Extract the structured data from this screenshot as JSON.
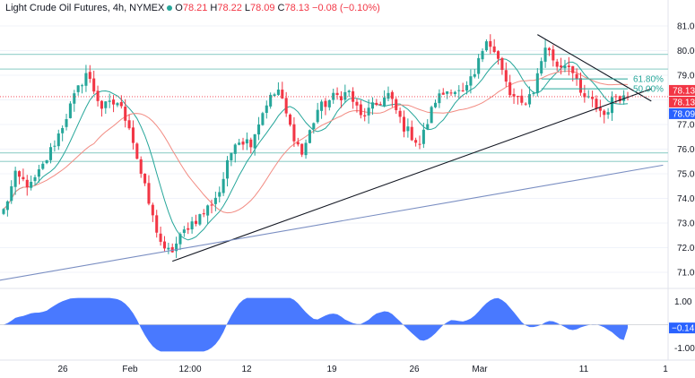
{
  "header": {
    "title": "Light Crude Oil Futures, 4h, NYMEX",
    "ohlc": [
      {
        "label": "O",
        "value": "78.21"
      },
      {
        "label": "H",
        "value": "78.22"
      },
      {
        "label": "L",
        "value": "78.09"
      },
      {
        "label": "C",
        "value": "78.13"
      }
    ],
    "change": "−0.08 (−0.10%)"
  },
  "colors": {
    "up": "#26a69a",
    "down": "#f23645",
    "ma_fast": "#26a69a",
    "ma_slow": "#f28b82",
    "trendline": "#131722",
    "support_line": "#7a8ec2",
    "fib": "#26a69a",
    "hline": "#9fd5cf",
    "osc_fill": "#2962ff",
    "last_price": "#f23645",
    "bid": "#2962ff"
  },
  "chart_data": {
    "type": "candlestick",
    "instrument": "Light Crude Oil Futures",
    "timeframe": "4h",
    "exchange": "NYMEX",
    "ylim": [
      70.6,
      81.4
    ],
    "y_ticks": [
      "81.00",
      "80.00",
      "79.00",
      "78.00",
      "77.00",
      "76.00",
      "75.00",
      "74.00",
      "73.00",
      "72.00",
      "71.00"
    ],
    "x_ticks": [
      "26",
      "Feb",
      "12:00",
      "12",
      "19",
      "26",
      "Mar",
      "11",
      "1"
    ],
    "anchors": [
      {
        "i": 0,
        "v": 73.5
      },
      {
        "i": 3,
        "v": 74.9
      },
      {
        "i": 7,
        "v": 74.5
      },
      {
        "i": 10,
        "v": 75.3
      },
      {
        "i": 14,
        "v": 76.6
      },
      {
        "i": 18,
        "v": 78.1
      },
      {
        "i": 21,
        "v": 79.1
      },
      {
        "i": 25,
        "v": 77.7
      },
      {
        "i": 29,
        "v": 77.9
      },
      {
        "i": 32,
        "v": 77.0
      },
      {
        "i": 35,
        "v": 75.0
      },
      {
        "i": 38,
        "v": 73.2
      },
      {
        "i": 41,
        "v": 71.8
      },
      {
        "i": 43,
        "v": 71.9
      },
      {
        "i": 47,
        "v": 72.9
      },
      {
        "i": 51,
        "v": 73.4
      },
      {
        "i": 55,
        "v": 74.3
      },
      {
        "i": 59,
        "v": 76.4
      },
      {
        "i": 63,
        "v": 76.3
      },
      {
        "i": 67,
        "v": 77.9
      },
      {
        "i": 70,
        "v": 78.4
      },
      {
        "i": 73,
        "v": 76.9
      },
      {
        "i": 76,
        "v": 75.8
      },
      {
        "i": 80,
        "v": 77.6
      },
      {
        "i": 84,
        "v": 78.1
      },
      {
        "i": 88,
        "v": 78.3
      },
      {
        "i": 91,
        "v": 77.3
      },
      {
        "i": 95,
        "v": 77.8
      },
      {
        "i": 98,
        "v": 78.2
      },
      {
        "i": 102,
        "v": 76.9
      },
      {
        "i": 106,
        "v": 76.2
      },
      {
        "i": 110,
        "v": 78.0
      },
      {
        "i": 114,
        "v": 78.5
      },
      {
        "i": 117,
        "v": 78.2
      },
      {
        "i": 120,
        "v": 79.0
      },
      {
        "i": 123,
        "v": 80.6
      },
      {
        "i": 126,
        "v": 79.6
      },
      {
        "i": 129,
        "v": 78.2
      },
      {
        "i": 132,
        "v": 77.8
      },
      {
        "i": 135,
        "v": 78.4
      },
      {
        "i": 138,
        "v": 80.2
      },
      {
        "i": 141,
        "v": 79.4
      },
      {
        "i": 144,
        "v": 79.5
      },
      {
        "i": 147,
        "v": 78.2
      },
      {
        "i": 150,
        "v": 77.9
      },
      {
        "i": 153,
        "v": 77.4
      },
      {
        "i": 156,
        "v": 78.2
      },
      {
        "i": 159,
        "v": 78.1
      }
    ],
    "last_price": "78.13",
    "price_tags": [
      "78.13",
      "78.09"
    ],
    "horizontal_levels": [
      79.85,
      79.25,
      75.85,
      75.5
    ],
    "trendlines": [
      {
        "from": {
          "i": 43,
          "v": 71.45
        },
        "to": {
          "i": 165,
          "v": 78.45
        }
      },
      {
        "from": {
          "i": 136,
          "v": 80.65
        },
        "to": {
          "i": 165,
          "v": 77.95
        }
      },
      {
        "from": {
          "i": -2,
          "v": 70.65
        },
        "to": {
          "i": 168,
          "v": 75.35
        }
      }
    ],
    "fib_levels": [
      {
        "label": "61.80%",
        "v": 78.85
      },
      {
        "label": "50.00%",
        "v": 78.45
      }
    ],
    "oscillator": {
      "ylim": [
        -1.25,
        1.25
      ],
      "y_ticks": [
        "1.00",
        "-1.00"
      ],
      "last_value": "−0.14"
    }
  }
}
